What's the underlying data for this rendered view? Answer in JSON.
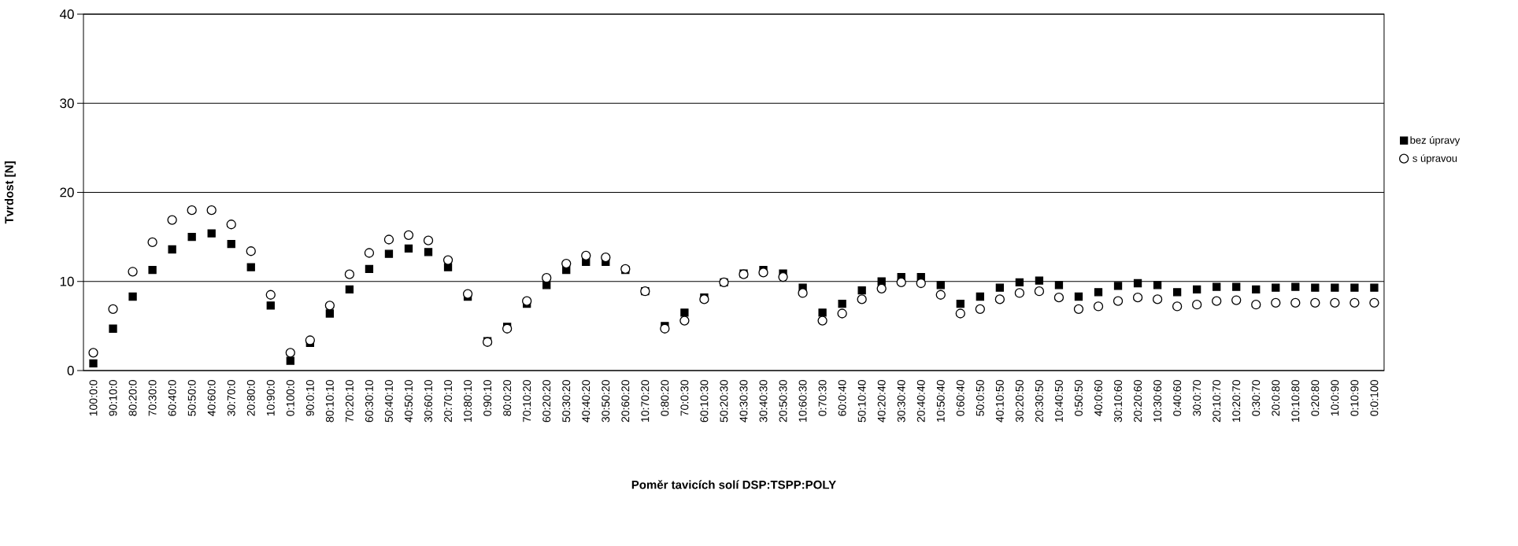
{
  "chart_data": {
    "type": "scatter",
    "xlabel": "Poměr tavicích solí DSP:TSPP:POLY",
    "ylabel": "Tvrdost [N]",
    "categories": [
      "100:0:0",
      "90:10:0",
      "80:20:0",
      "70:30:0",
      "60:40:0",
      "50:50:0",
      "40:60:0",
      "30:70:0",
      "20:80:0",
      "10:90:0",
      "0:100:0",
      "90:0:10",
      "80:10:10",
      "70:20:10",
      "60:30:10",
      "50:40:10",
      "40:50:10",
      "30:60:10",
      "20:70:10",
      "10:80:10",
      "0:90:10",
      "80:0:20",
      "70:10:20",
      "60:20:20",
      "50:30:20",
      "40:40:20",
      "30:50:20",
      "20:60:20",
      "10:70:20",
      "0:80:20",
      "70:0:30",
      "60:10:30",
      "50:20:30",
      "40:30:30",
      "30:40:30",
      "20:50:30",
      "10:60:30",
      "0:70:30",
      "60:0:40",
      "50:10:40",
      "40:20:40",
      "30:30:40",
      "20:40:40",
      "10:50:40",
      "0:60:40",
      "50:0:50",
      "40:10:50",
      "30:20:50",
      "20:30:50",
      "10:40:50",
      "0:50:50",
      "40:0:60",
      "30:10:60",
      "20:20:60",
      "10:30:60",
      "0:40:60",
      "30:0:70",
      "20:10:70",
      "10:20:70",
      "0:30:70",
      "20:0:80",
      "10:10:80",
      "0:20:80",
      "10:0:90",
      "0:10:90",
      "0:0:100"
    ],
    "series": [
      {
        "name": "bez úpravy",
        "color": "#000000",
        "marker": "square",
        "values": [
          0.8,
          4.7,
          8.3,
          11.3,
          13.6,
          15.0,
          15.4,
          14.2,
          11.6,
          7.3,
          1.1,
          3.1,
          6.4,
          9.1,
          11.4,
          13.1,
          13.7,
          13.3,
          11.6,
          8.3,
          3.3,
          4.9,
          7.5,
          9.6,
          11.3,
          12.2,
          12.2,
          11.3,
          8.9,
          5.0,
          6.5,
          8.2,
          9.9,
          10.9,
          11.3,
          10.9,
          9.3,
          6.5,
          7.5,
          9.0,
          10.0,
          10.5,
          10.5,
          9.6,
          7.5,
          8.3,
          9.3,
          9.9,
          10.1,
          9.6,
          8.3,
          8.8,
          9.5,
          9.8,
          9.6,
          8.8,
          9.1,
          9.4,
          9.4,
          9.1,
          9.3,
          9.4,
          9.3,
          9.3,
          9.3,
          9.3
        ]
      },
      {
        "name": "s úpravou",
        "color": "#000000",
        "marker": "circle",
        "values": [
          2.0,
          6.9,
          11.1,
          14.4,
          16.9,
          18.0,
          18.0,
          16.4,
          13.4,
          8.5,
          2.0,
          3.4,
          7.3,
          10.8,
          13.2,
          14.7,
          15.2,
          14.6,
          12.4,
          8.6,
          3.2,
          4.7,
          7.8,
          10.4,
          12.0,
          12.9,
          12.7,
          11.4,
          8.9,
          4.7,
          5.6,
          8.0,
          9.9,
          10.8,
          11.0,
          10.5,
          8.7,
          5.6,
          6.4,
          8.0,
          9.2,
          9.9,
          9.8,
          8.5,
          6.4,
          6.9,
          8.0,
          8.7,
          8.9,
          8.2,
          6.9,
          7.2,
          7.8,
          8.2,
          8.0,
          7.2,
          7.4,
          7.8,
          7.9,
          7.4,
          7.6,
          7.6,
          7.6,
          7.6,
          7.6,
          7.6
        ]
      }
    ],
    "ylim": [
      0,
      40
    ],
    "yticks": [
      0,
      10,
      20,
      30,
      40
    ],
    "grid": "y",
    "legend": "right"
  }
}
